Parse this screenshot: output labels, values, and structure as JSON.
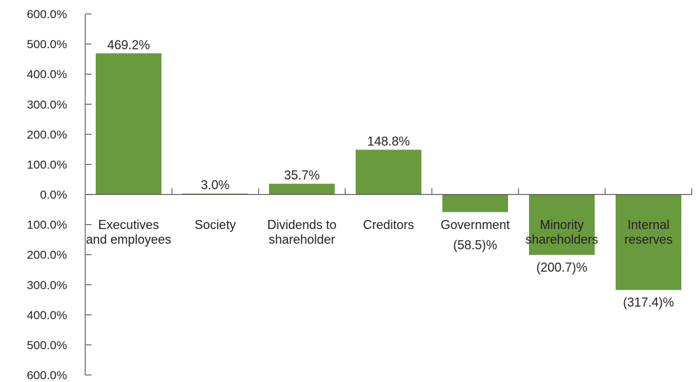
{
  "chart_data": {
    "type": "bar",
    "title": "",
    "xlabel": "",
    "ylabel": "",
    "ylim": [
      -600,
      600
    ],
    "yticks": [
      600,
      500,
      400,
      300,
      200,
      100,
      0,
      -100,
      -200,
      -300,
      -400,
      -500,
      -600
    ],
    "ytick_labels": [
      "600.0%",
      "500.0%",
      "400.0%",
      "300.0%",
      "200.0%",
      "100.0%",
      "0.0%",
      "100.0%",
      "200.0%",
      "300.0%",
      "400.0%",
      "500.0%",
      "600.0%"
    ],
    "categories": [
      [
        "Executives",
        "and employees"
      ],
      [
        "Society"
      ],
      [
        "Dividends to",
        "shareholder"
      ],
      [
        "Creditors"
      ],
      [
        "Government"
      ],
      [
        "Minority",
        "shareholders"
      ],
      [
        "Internal",
        "reserves"
      ]
    ],
    "values": [
      469.2,
      3.0,
      35.7,
      148.8,
      -58.5,
      -200.7,
      -317.4
    ],
    "value_labels": [
      "469.2%",
      "3.0%",
      "35.7%",
      "148.8%",
      "(58.5)%",
      "(200.7)%",
      "(317.4)%"
    ],
    "bar_color": "#6a9a3e",
    "grid": false
  }
}
